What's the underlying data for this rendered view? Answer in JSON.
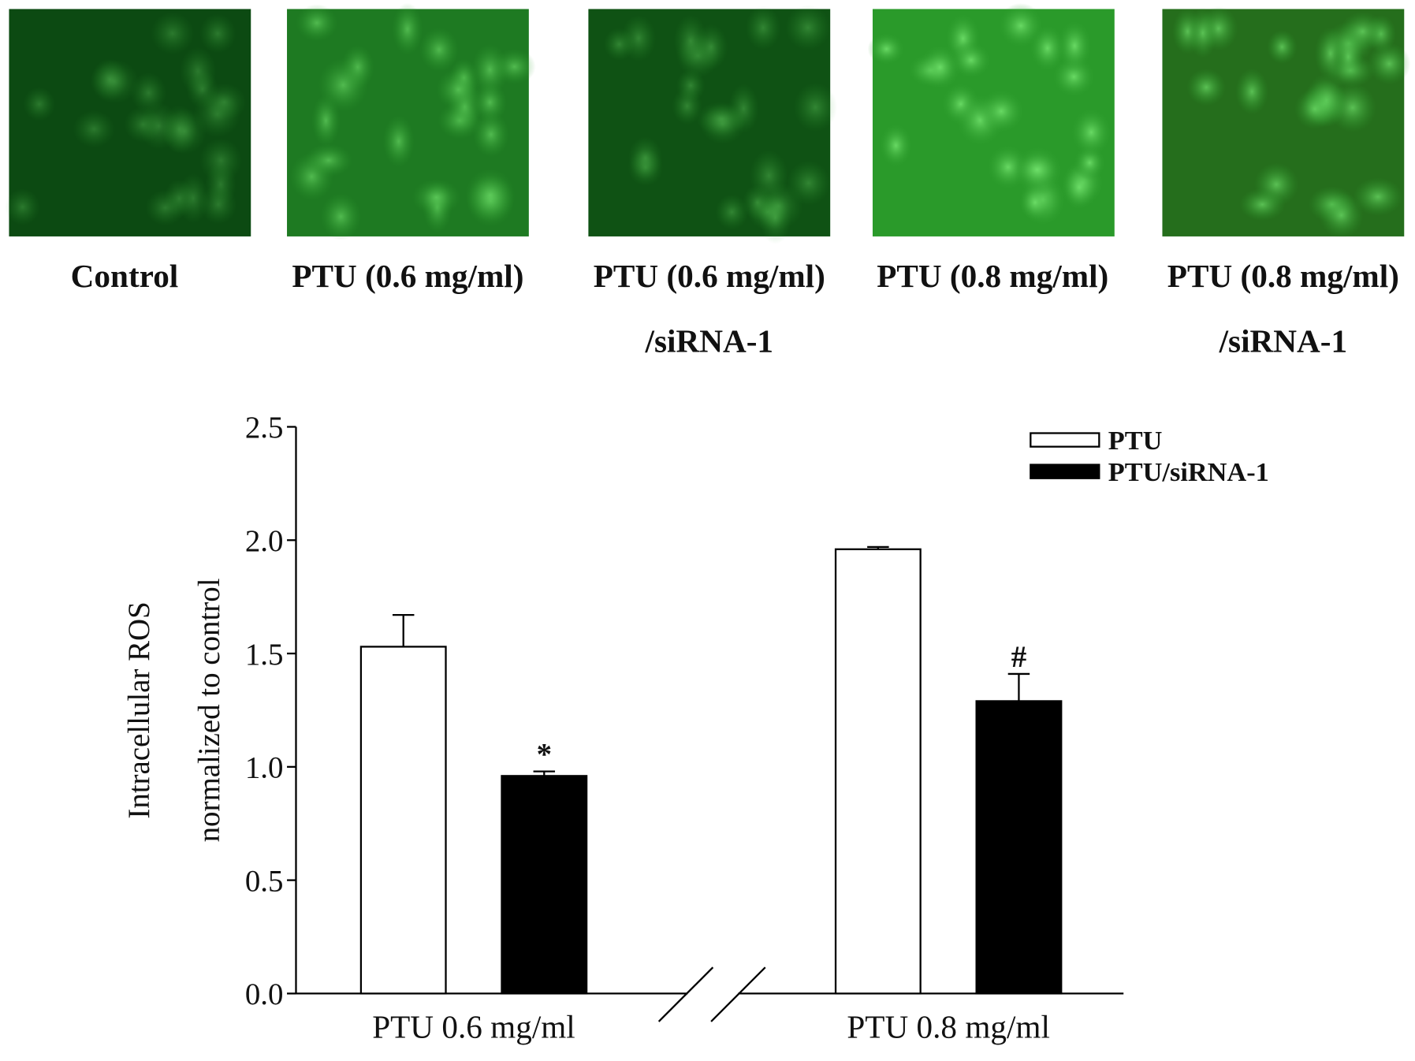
{
  "panels": [
    {
      "label": [
        "Control"
      ]
    },
    {
      "label": [
        "PTU (0.6 mg/ml)"
      ]
    },
    {
      "label": [
        "PTU (0.6 mg/ml)",
        "/siRNA-1"
      ]
    },
    {
      "label": [
        "PTU (0.8 mg/ml)"
      ]
    },
    {
      "label": [
        "PTU (0.8 mg/ml)",
        "/siRNA-1"
      ]
    }
  ],
  "chart_data": {
    "type": "bar",
    "y_label": [
      "Intracellular ROS",
      "normalized to control"
    ],
    "categories": [
      "PTU 0.6 mg/ml",
      "PTU 0.8 mg/ml"
    ],
    "series": [
      {
        "name": "PTU",
        "color": "#ffffff",
        "values": [
          1.53,
          1.96
        ],
        "errors": [
          0.14,
          0.01
        ]
      },
      {
        "name": "PTU/siRNA-1",
        "color": "#000000",
        "values": [
          0.96,
          1.29
        ],
        "errors": [
          0.02,
          0.12
        ]
      }
    ],
    "annotations": [
      {
        "text": "*",
        "series": 1,
        "index": 0
      },
      {
        "text": "#",
        "series": 1,
        "index": 1
      }
    ],
    "ylim": [
      0,
      2.5
    ],
    "yticks": [
      {
        "value": 0,
        "label": "0.0"
      },
      0.5,
      {
        "value": 1,
        "label": "1.0"
      },
      1.5,
      {
        "value": 2,
        "label": "2.0"
      },
      2.5
    ],
    "legend": "top-right"
  }
}
